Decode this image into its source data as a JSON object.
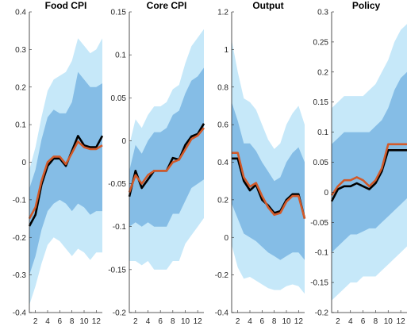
{
  "colors": {
    "outer_band": "#c6e8f9",
    "inner_band": "#85bde6",
    "median_line": "#000000",
    "estimate_line": "#d25a2a",
    "axis": "#262626"
  },
  "chart_data": [
    {
      "type": "area",
      "title": "Food CPI",
      "x": [
        1,
        2,
        3,
        4,
        5,
        6,
        7,
        8,
        9,
        10,
        11,
        12,
        13
      ],
      "ylim": [
        -0.4,
        0.4
      ],
      "yticks": [
        -0.4,
        -0.3,
        -0.2,
        -0.1,
        0,
        0.1,
        0.2,
        0.3,
        0.4
      ],
      "ytick_labels": [
        "-0.4",
        "-0.3",
        "-0.2",
        "-0.1",
        "0",
        "0.1",
        "0.2",
        "0.3",
        "0.4"
      ],
      "xticks": [
        2,
        4,
        6,
        8,
        10,
        12
      ],
      "xtick_labels": [
        "2",
        "4",
        "6",
        "8",
        "10",
        "12"
      ],
      "outer_lower": [
        -0.38,
        -0.33,
        -0.27,
        -0.22,
        -0.2,
        -0.21,
        -0.23,
        -0.25,
        -0.23,
        -0.24,
        -0.26,
        -0.24,
        -0.24
      ],
      "inner_lower": [
        -0.3,
        -0.25,
        -0.18,
        -0.13,
        -0.11,
        -0.1,
        -0.11,
        -0.13,
        -0.11,
        -0.12,
        -0.14,
        -0.13,
        -0.13
      ],
      "inner_upper": [
        -0.07,
        -0.02,
        0.06,
        0.12,
        0.14,
        0.13,
        0.13,
        0.16,
        0.24,
        0.22,
        0.2,
        0.2,
        0.21
      ],
      "outer_upper": [
        -0.02,
        0.04,
        0.12,
        0.19,
        0.22,
        0.23,
        0.24,
        0.27,
        0.33,
        0.31,
        0.29,
        0.3,
        0.33
      ],
      "median": [
        -0.17,
        -0.14,
        -0.06,
        -0.01,
        0.01,
        0.01,
        -0.01,
        0.03,
        0.07,
        0.045,
        0.04,
        0.04,
        0.07
      ],
      "estimate": [
        -0.15,
        -0.12,
        -0.05,
        0,
        0.015,
        0.015,
        -0.005,
        0.025,
        0.055,
        0.04,
        0.035,
        0.035,
        0.045
      ]
    },
    {
      "type": "area",
      "title": "Core CPI",
      "x": [
        1,
        2,
        3,
        4,
        5,
        6,
        7,
        8,
        9,
        10,
        11,
        12,
        13
      ],
      "ylim": [
        -0.2,
        0.15
      ],
      "yticks": [
        -0.2,
        -0.15,
        -0.1,
        -0.05,
        0,
        0.05,
        0.1,
        0.15
      ],
      "ytick_labels": [
        "-0.2",
        "-0.15",
        "-0.1",
        "-0.05",
        "0",
        "0.05",
        "0.1",
        "0.15"
      ],
      "xticks": [
        2,
        4,
        6,
        8,
        10,
        12
      ],
      "xtick_labels": [
        "2",
        "4",
        "6",
        "8",
        "10",
        "12"
      ],
      "outer_lower": [
        -0.14,
        -0.14,
        -0.145,
        -0.14,
        -0.15,
        -0.15,
        -0.15,
        -0.14,
        -0.14,
        -0.12,
        -0.11,
        -0.1,
        -0.09
      ],
      "inner_lower": [
        -0.1,
        -0.095,
        -0.1,
        -0.095,
        -0.1,
        -0.1,
        -0.1,
        -0.085,
        -0.085,
        -0.07,
        -0.055,
        -0.05,
        -0.045
      ],
      "inner_upper": [
        -0.035,
        -0.005,
        -0.015,
        0,
        0.01,
        0.01,
        0.015,
        0.03,
        0.035,
        0.055,
        0.07,
        0.075,
        0.085
      ],
      "outer_upper": [
        -0.005,
        0.025,
        0.015,
        0.03,
        0.04,
        0.04,
        0.045,
        0.06,
        0.065,
        0.09,
        0.11,
        0.12,
        0.13
      ],
      "median": [
        -0.065,
        -0.035,
        -0.055,
        -0.045,
        -0.035,
        -0.035,
        -0.035,
        -0.02,
        -0.022,
        -0.005,
        0.005,
        0.008,
        0.02
      ],
      "estimate": [
        -0.06,
        -0.04,
        -0.05,
        -0.04,
        -0.035,
        -0.035,
        -0.035,
        -0.025,
        -0.022,
        -0.01,
        0.002,
        0.006,
        0.015
      ]
    },
    {
      "type": "area",
      "title": "Output",
      "x": [
        1,
        2,
        3,
        4,
        5,
        6,
        7,
        8,
        9,
        10,
        11,
        12,
        13
      ],
      "ylim": [
        -0.4,
        1.2
      ],
      "yticks": [
        -0.4,
        -0.2,
        0,
        0.2,
        0.4,
        0.6,
        0.8,
        1,
        1.2
      ],
      "ytick_labels": [
        "-0.4",
        "-0.2",
        "0",
        "0.2",
        "0.4",
        "0.6",
        "0.8",
        "1",
        "1.2"
      ],
      "xticks": [
        2,
        4,
        6,
        8,
        10,
        12
      ],
      "xtick_labels": [
        "2",
        "4",
        "6",
        "8",
        "10",
        "12"
      ],
      "outer_lower": [
        -0.04,
        -0.16,
        -0.22,
        -0.21,
        -0.23,
        -0.25,
        -0.27,
        -0.28,
        -0.28,
        -0.26,
        -0.25,
        -0.26,
        -0.3
      ],
      "inner_lower": [
        0.18,
        0.1,
        0.02,
        0.0,
        -0.02,
        -0.05,
        -0.08,
        -0.1,
        -0.12,
        -0.1,
        -0.08,
        -0.08,
        -0.12
      ],
      "inner_upper": [
        0.72,
        0.62,
        0.5,
        0.5,
        0.46,
        0.4,
        0.35,
        0.3,
        0.32,
        0.4,
        0.45,
        0.48,
        0.4
      ],
      "outer_upper": [
        1.05,
        0.88,
        0.74,
        0.72,
        0.68,
        0.6,
        0.52,
        0.47,
        0.5,
        0.6,
        0.66,
        0.7,
        0.6
      ],
      "median": [
        0.42,
        0.42,
        0.3,
        0.25,
        0.28,
        0.2,
        0.17,
        0.13,
        0.14,
        0.2,
        0.23,
        0.23,
        0.1
      ],
      "estimate": [
        0.45,
        0.45,
        0.32,
        0.27,
        0.29,
        0.22,
        0.16,
        0.12,
        0.13,
        0.19,
        0.22,
        0.22,
        0.1
      ]
    },
    {
      "type": "area",
      "title": "Policy",
      "x": [
        1,
        2,
        3,
        4,
        5,
        6,
        7,
        8,
        9,
        10,
        11,
        12,
        13
      ],
      "ylim": [
        -0.2,
        0.3
      ],
      "yticks": [
        -0.2,
        -0.15,
        -0.1,
        -0.05,
        0,
        0.05,
        0.1,
        0.15,
        0.2,
        0.25,
        0.3
      ],
      "ytick_labels": [
        "-0.2",
        "-0.15",
        "-0.1",
        "-0.05",
        "0",
        "0.05",
        "0.1",
        "0.15",
        "0.2",
        "0.25",
        "0.3"
      ],
      "xticks": [
        2,
        4,
        6,
        8,
        10,
        12
      ],
      "xtick_labels": [
        "2",
        "4",
        "6",
        "8",
        "10",
        "12"
      ],
      "outer_lower": [
        -0.18,
        -0.17,
        -0.16,
        -0.15,
        -0.15,
        -0.14,
        -0.14,
        -0.14,
        -0.13,
        -0.12,
        -0.11,
        -0.1,
        -0.09
      ],
      "inner_lower": [
        -0.1,
        -0.09,
        -0.08,
        -0.07,
        -0.07,
        -0.065,
        -0.06,
        -0.06,
        -0.05,
        -0.04,
        -0.03,
        -0.02,
        -0.01
      ],
      "inner_upper": [
        0.08,
        0.09,
        0.1,
        0.1,
        0.1,
        0.1,
        0.1,
        0.11,
        0.12,
        0.14,
        0.17,
        0.19,
        0.2
      ],
      "outer_upper": [
        0.14,
        0.15,
        0.16,
        0.16,
        0.16,
        0.16,
        0.17,
        0.18,
        0.2,
        0.22,
        0.25,
        0.27,
        0.28
      ],
      "median": [
        -0.015,
        0.005,
        0.01,
        0.01,
        0.015,
        0.01,
        0.005,
        0.015,
        0.035,
        0.07,
        0.07,
        0.07,
        0.07
      ],
      "estimate": [
        -0.005,
        0.01,
        0.02,
        0.02,
        0.025,
        0.02,
        0.01,
        0.02,
        0.04,
        0.08,
        0.08,
        0.08,
        0.08
      ]
    }
  ]
}
